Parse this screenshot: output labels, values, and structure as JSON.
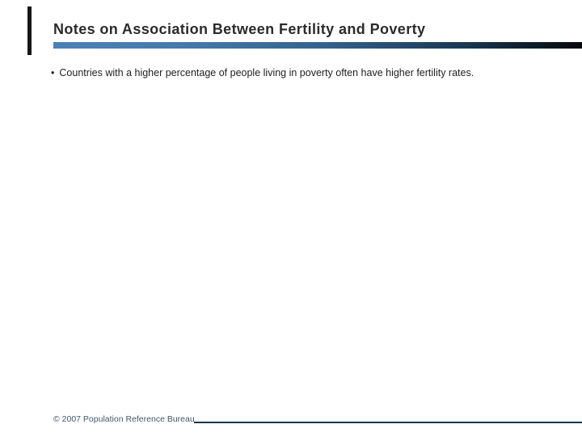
{
  "slide": {
    "title": "Notes on Association Between Fertility and Poverty",
    "bullet_glyph": "•",
    "bullet": "Countries with a higher percentage of people living in poverty often have higher fertility rates.",
    "footer": "© 2007 Population Reference Bureau",
    "colors": {
      "title_text": "#2b2b2b",
      "body_text": "#1f1f1f",
      "accent_bar_left": "#4c81b6",
      "accent_bar_right": "#06090c",
      "corner_mark": "#161616",
      "footer_text": "#42586a",
      "footer_line": "#18364a",
      "background": "#ffffff"
    }
  }
}
